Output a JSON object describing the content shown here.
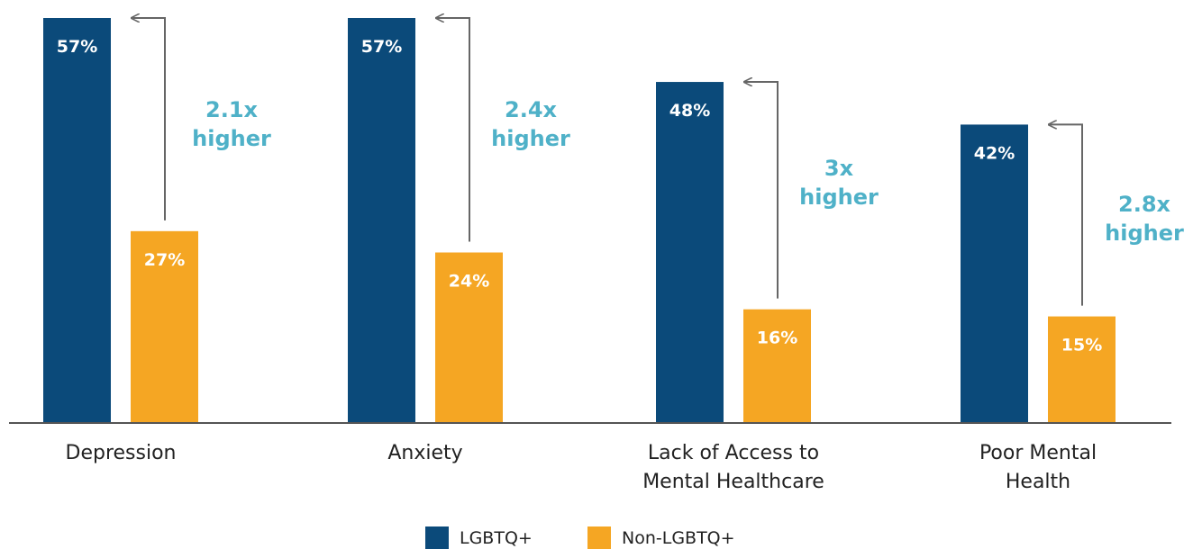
{
  "chart_data": {
    "type": "bar",
    "categories": [
      [
        "Depression"
      ],
      [
        "Anxiety"
      ],
      [
        "Lack of Access to",
        "Mental Healthcare"
      ],
      [
        "Poor Mental",
        "Health"
      ]
    ],
    "series": [
      {
        "name": "LGBTQ+",
        "color": "#0b4a7a",
        "values": [
          57,
          57,
          48,
          42
        ],
        "labels": [
          "57%",
          "57%",
          "48%",
          "42%"
        ]
      },
      {
        "name": "Non-LGBTQ+",
        "color": "#f5a623",
        "values": [
          27,
          24,
          16,
          15
        ],
        "labels": [
          "27%",
          "24%",
          "16%",
          "15%"
        ]
      }
    ],
    "annotations": [
      [
        "2.1x",
        "higher"
      ],
      [
        "2.4x",
        "higher"
      ],
      [
        "3x",
        "higher"
      ],
      [
        "2.8x",
        "higher"
      ]
    ],
    "annotation_color": "#4fb1c8",
    "ylim": [
      0,
      57
    ],
    "legend_position": "bottom-center",
    "grid": false
  }
}
